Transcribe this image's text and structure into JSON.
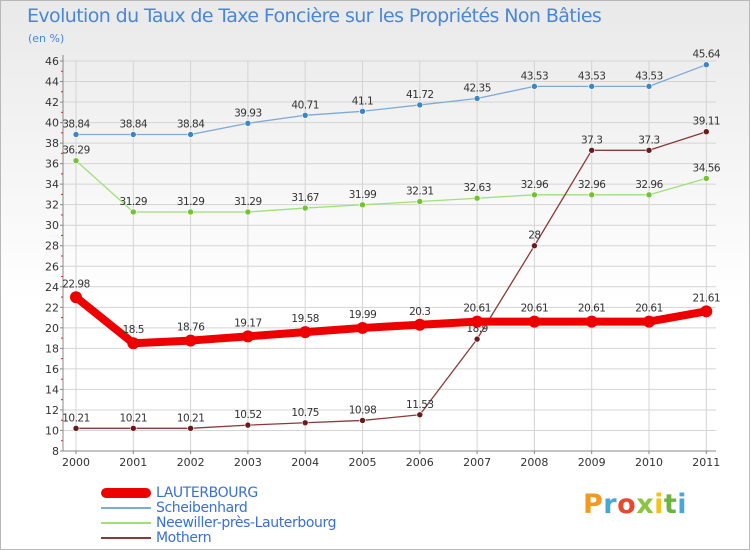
{
  "title": "Evolution du Taux de Taxe Foncière sur les Propriétés Non Bâties",
  "unit": "(en %)",
  "logo": "Proxiti",
  "chart_data": {
    "type": "line",
    "title": "Evolution du Taux de Taxe Foncière sur les Propriétés Non Bâties",
    "ylabel": "(en %)",
    "xlabel": "",
    "x": [
      "2000",
      "2001",
      "2002",
      "2003",
      "2004",
      "2005",
      "2006",
      "2007",
      "2008",
      "2009",
      "2010",
      "2011"
    ],
    "ylim": [
      8,
      46
    ],
    "yticks": [
      8,
      10,
      12,
      14,
      16,
      18,
      20,
      22,
      24,
      26,
      28,
      30,
      32,
      34,
      36,
      38,
      40,
      42,
      44,
      46
    ],
    "grid": true,
    "legend_position": "bottom-left",
    "series": [
      {
        "name": "Scheibenhard",
        "color": "#7eaad6",
        "marker": "#3c86c6",
        "values": [
          38.84,
          38.84,
          38.84,
          39.93,
          40.71,
          41.1,
          41.72,
          42.35,
          43.53,
          43.53,
          43.53,
          45.64
        ],
        "labels": [
          "38.84",
          "38.84",
          "38.84",
          "39.93",
          "40.71",
          "41.1",
          "41.72",
          "42.35",
          "43.53",
          "43.53",
          "43.53",
          "45.64"
        ]
      },
      {
        "name": "Neewiller-près-Lauterbourg",
        "color": "#9fe07a",
        "marker": "#72c232",
        "values": [
          36.29,
          31.29,
          31.29,
          31.29,
          31.67,
          31.99,
          32.31,
          32.63,
          32.96,
          32.96,
          32.96,
          34.56
        ],
        "labels": [
          "36.29",
          "31.29",
          "31.29",
          "31.29",
          "31.67",
          "31.99",
          "32.31",
          "32.63",
          "32.96",
          "32.96",
          "32.96",
          "34.56"
        ]
      },
      {
        "name": "Mothern",
        "color": "#8a3a3a",
        "marker": "#6a1a1a",
        "values": [
          10.21,
          10.21,
          10.21,
          10.52,
          10.75,
          10.98,
          11.53,
          18.9,
          28,
          37.3,
          37.3,
          39.11
        ],
        "labels": [
          "10.21",
          "10.21",
          "10.21",
          "10.52",
          "10.75",
          "10.98",
          "11.53",
          "18.9",
          "28",
          "37.3",
          "37.3",
          "39.11"
        ]
      },
      {
        "name": "LAUTERBOURG",
        "color": "#ee0000",
        "marker": "#ee0000",
        "values": [
          22.98,
          18.5,
          18.76,
          19.17,
          19.58,
          19.99,
          20.3,
          20.61,
          20.61,
          20.61,
          20.61,
          21.61
        ],
        "labels": [
          "22.98",
          "18.5",
          "18.76",
          "19.17",
          "19.58",
          "19.99",
          "20.3",
          "20.61",
          "20.61",
          "20.61",
          "20.61",
          "21.61"
        ]
      }
    ],
    "legend": [
      {
        "name": "LAUTERBOURG",
        "color": "#ee0000"
      },
      {
        "name": "Scheibenhard",
        "color": "#7eaad6"
      },
      {
        "name": "Neewiller-près-Lauterbourg",
        "color": "#9fe07a"
      },
      {
        "name": "Mothern",
        "color": "#8a3a3a"
      }
    ]
  }
}
